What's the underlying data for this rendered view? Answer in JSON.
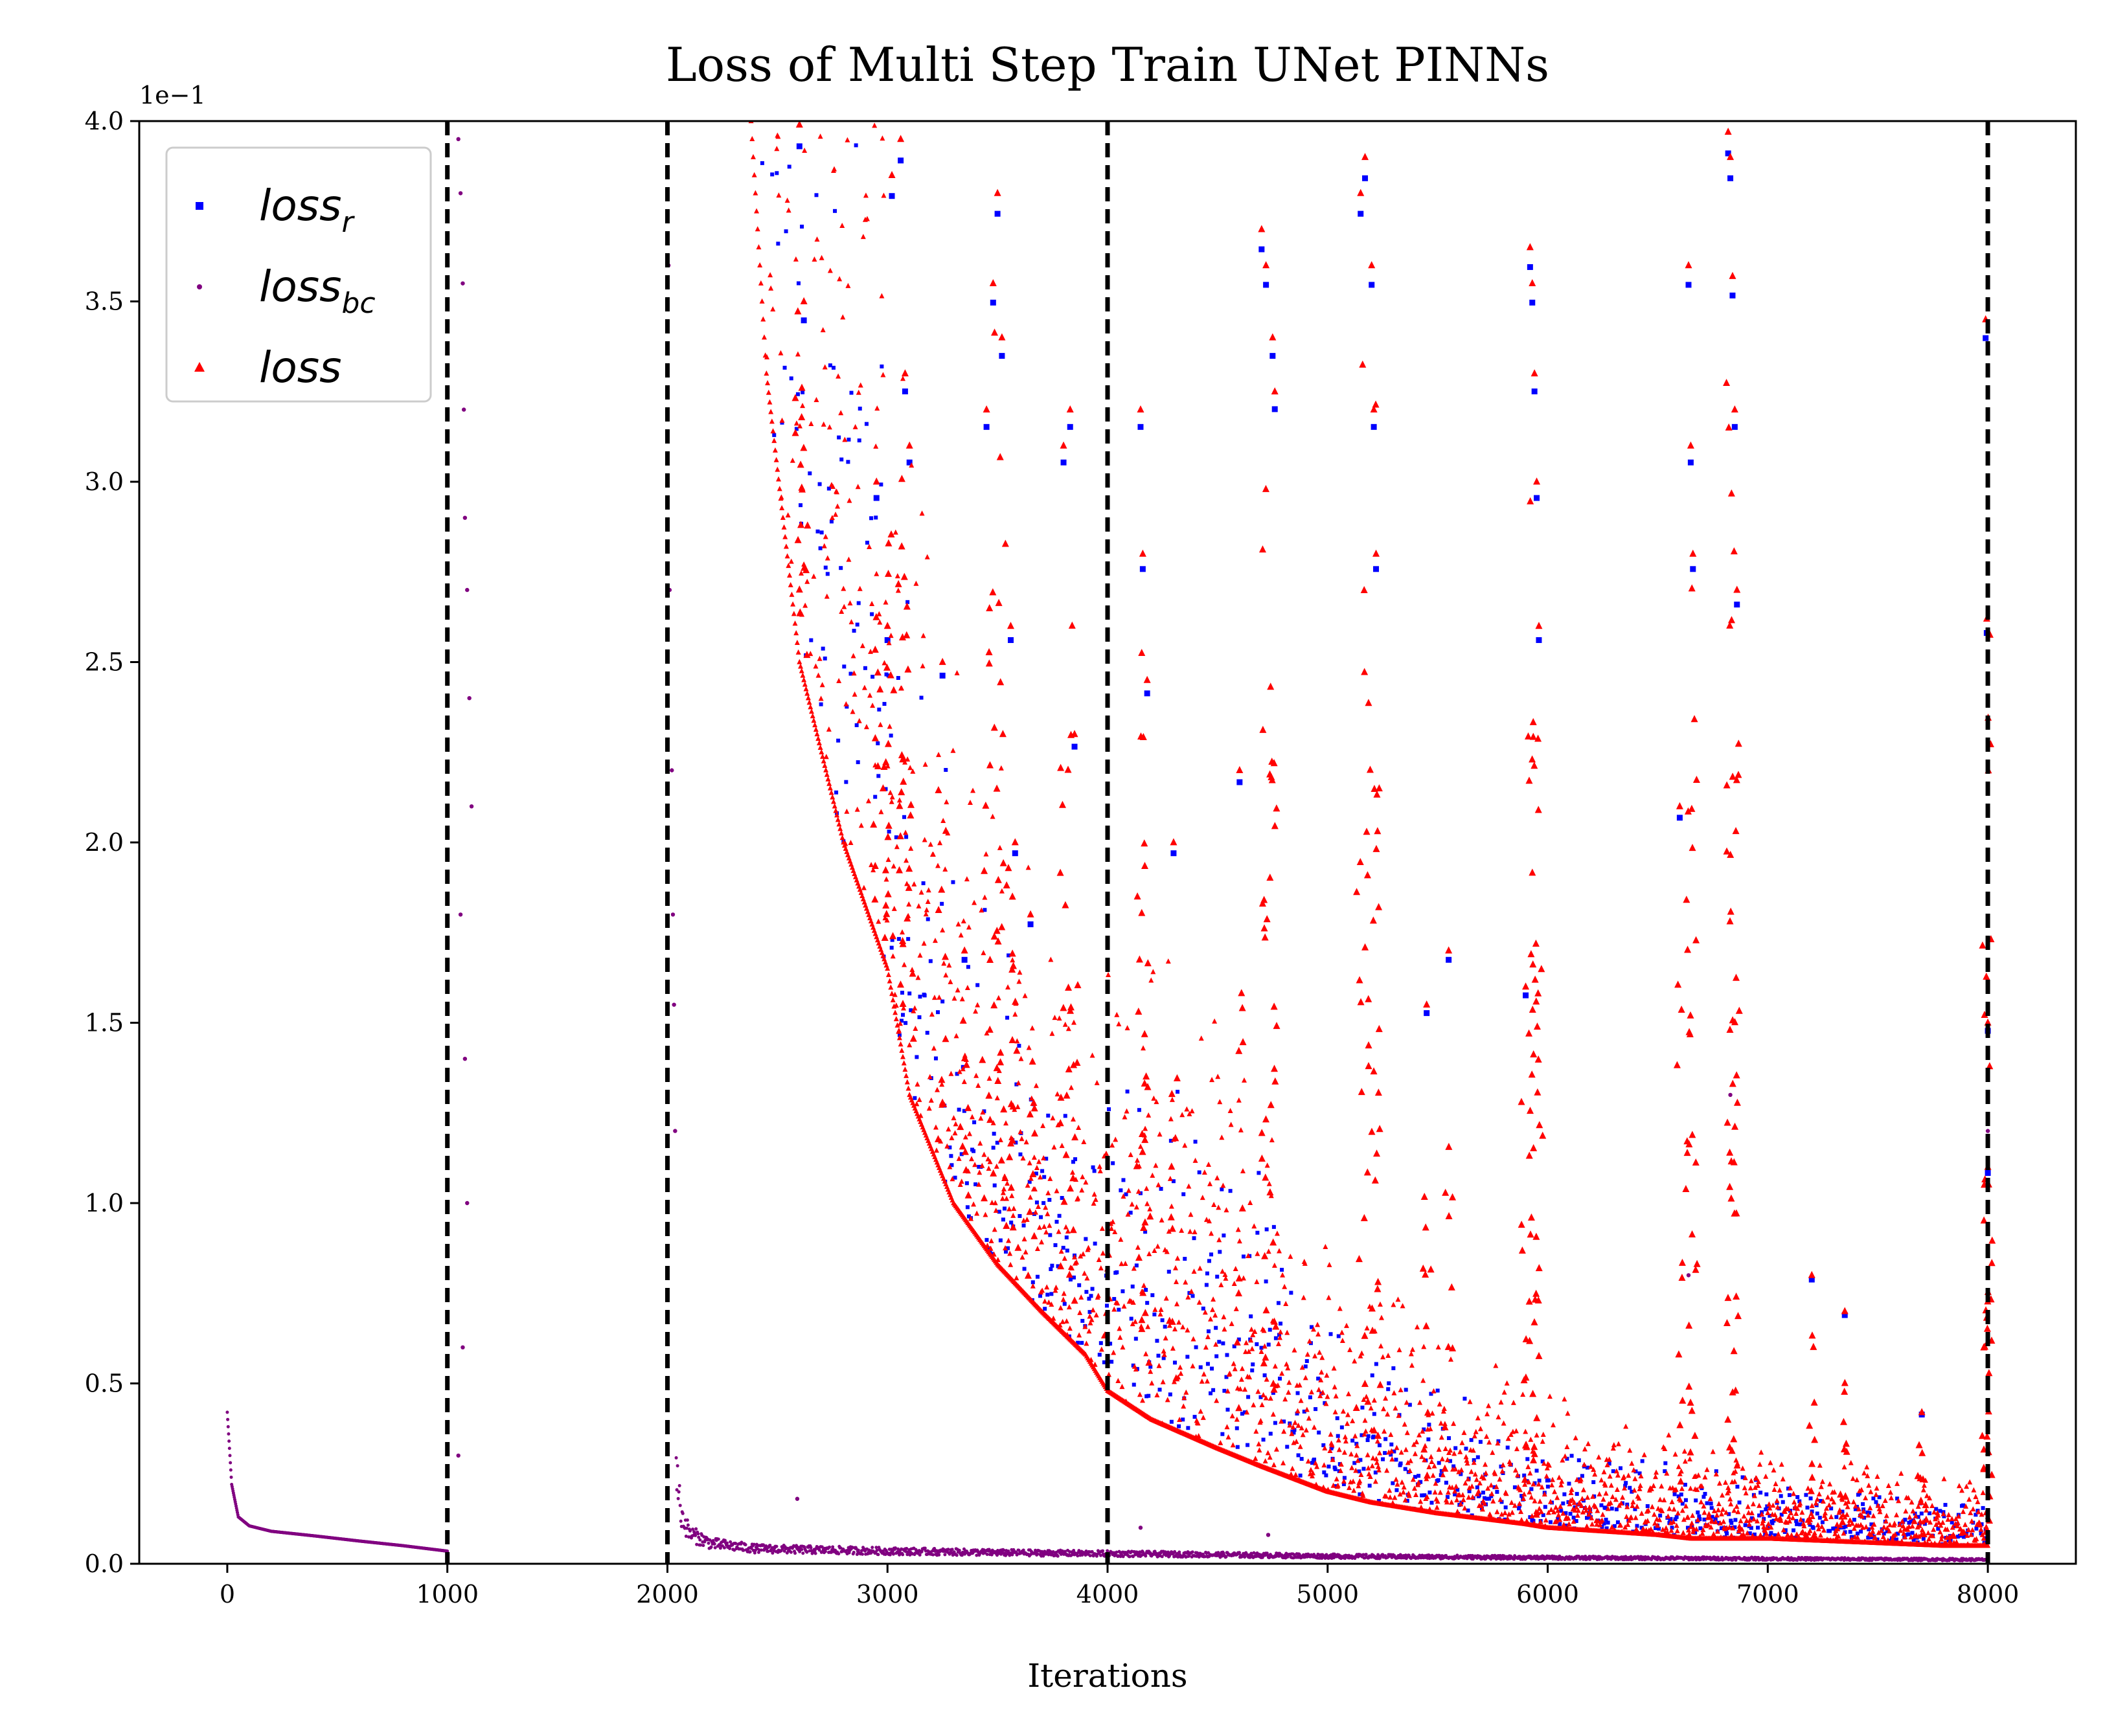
{
  "chart_data": {
    "type": "scatter",
    "title": "Loss of Multi Step Train UNet PINNs",
    "xlabel": "Iterations",
    "ylabel": "",
    "xlim": [
      -400,
      8400
    ],
    "ylim": [
      0,
      0.4
    ],
    "y_offset_label": "1e−1",
    "x_ticks": [
      0,
      1000,
      2000,
      3000,
      4000,
      5000,
      6000,
      7000,
      8000
    ],
    "x_tick_labels": [
      "0",
      "1000",
      "2000",
      "3000",
      "4000",
      "5000",
      "6000",
      "7000",
      "8000"
    ],
    "y_ticks": [
      0,
      0.05,
      0.1,
      0.15,
      0.2,
      0.25,
      0.3,
      0.35,
      0.4
    ],
    "y_tick_labels": [
      "0.0",
      "0.5",
      "1.0",
      "1.5",
      "2.0",
      "2.5",
      "3.0",
      "3.5",
      "4.0"
    ],
    "grid": false,
    "legend_position": "top-left",
    "vertical_lines": [
      1000,
      2000,
      4000,
      8000
    ],
    "colors": {
      "loss_r": "#0000ff",
      "loss_bc": "#800080",
      "loss": "#ff0000",
      "vline": "#000000"
    },
    "series": [
      {
        "name": "loss",
        "sub": "r",
        "key": "loss_r",
        "marker": "square",
        "x": [
          2380,
          2450,
          2600,
          2800,
          3000,
          3100,
          3300,
          3500,
          3700,
          3900,
          4000,
          4200,
          4500,
          4700,
          5000,
          5200,
          5500,
          5900,
          6000,
          6500,
          6650,
          6850,
          7000,
          7400,
          7800,
          8000
        ],
        "y": [
          0.4,
          0.33,
          0.25,
          0.2,
          0.165,
          0.13,
          0.1,
          0.083,
          0.07,
          0.058,
          0.048,
          0.04,
          0.032,
          0.027,
          0.02,
          0.017,
          0.014,
          0.011,
          0.01,
          0.008,
          0.007,
          0.007,
          0.007,
          0.006,
          0.005,
          0.005
        ]
      },
      {
        "name": "loss",
        "sub": "bc",
        "key": "loss_bc",
        "marker": "point",
        "x": [
          0,
          20,
          50,
          100,
          200,
          400,
          600,
          800,
          1000,
          2040,
          2060,
          2100,
          2200,
          2400,
          2600,
          3000,
          3500,
          4000,
          4500,
          5000,
          6000,
          7000,
          8000
        ],
        "y": [
          0.042,
          0.022,
          0.013,
          0.0105,
          0.009,
          0.0077,
          0.0063,
          0.005,
          0.0035,
          0.02,
          0.01,
          0.006,
          0.004,
          0.003,
          0.0028,
          0.0025,
          0.0022,
          0.002,
          0.0018,
          0.0015,
          0.0012,
          0.001,
          0.0008
        ]
      },
      {
        "name": "loss",
        "sub": "",
        "key": "loss",
        "marker": "triangle",
        "x": [
          2380,
          2450,
          2600,
          2800,
          3000,
          3100,
          3300,
          3500,
          3700,
          3900,
          4000,
          4200,
          4500,
          4700,
          5000,
          5200,
          5500,
          5900,
          6000,
          6500,
          6650,
          6850,
          7000,
          7400,
          7800,
          8000
        ],
        "y": [
          0.4,
          0.33,
          0.25,
          0.2,
          0.165,
          0.13,
          0.1,
          0.083,
          0.07,
          0.058,
          0.048,
          0.04,
          0.032,
          0.027,
          0.02,
          0.017,
          0.014,
          0.011,
          0.01,
          0.008,
          0.007,
          0.007,
          0.007,
          0.006,
          0.005,
          0.005
        ]
      }
    ],
    "spikes": [
      {
        "x": 2600,
        "y": 0.399
      },
      {
        "x": 2620,
        "y": 0.35
      },
      {
        "x": 2950,
        "y": 0.3
      },
      {
        "x": 3000,
        "y": 0.26
      },
      {
        "x": 3020,
        "y": 0.385
      },
      {
        "x": 3060,
        "y": 0.395
      },
      {
        "x": 3080,
        "y": 0.33
      },
      {
        "x": 3100,
        "y": 0.31
      },
      {
        "x": 3250,
        "y": 0.25
      },
      {
        "x": 3350,
        "y": 0.17
      },
      {
        "x": 3450,
        "y": 0.32
      },
      {
        "x": 3480,
        "y": 0.355
      },
      {
        "x": 3500,
        "y": 0.38
      },
      {
        "x": 3520,
        "y": 0.34
      },
      {
        "x": 3560,
        "y": 0.26
      },
      {
        "x": 3580,
        "y": 0.2
      },
      {
        "x": 3650,
        "y": 0.18
      },
      {
        "x": 3800,
        "y": 0.31
      },
      {
        "x": 3830,
        "y": 0.32
      },
      {
        "x": 3850,
        "y": 0.23
      },
      {
        "x": 4150,
        "y": 0.32
      },
      {
        "x": 4160,
        "y": 0.28
      },
      {
        "x": 4180,
        "y": 0.245
      },
      {
        "x": 4300,
        "y": 0.2
      },
      {
        "x": 4600,
        "y": 0.22
      },
      {
        "x": 4700,
        "y": 0.37
      },
      {
        "x": 4720,
        "y": 0.36
      },
      {
        "x": 4750,
        "y": 0.34
      },
      {
        "x": 4760,
        "y": 0.325
      },
      {
        "x": 5150,
        "y": 0.38
      },
      {
        "x": 5170,
        "y": 0.39
      },
      {
        "x": 5200,
        "y": 0.36
      },
      {
        "x": 5210,
        "y": 0.32
      },
      {
        "x": 5220,
        "y": 0.28
      },
      {
        "x": 5450,
        "y": 0.155
      },
      {
        "x": 5550,
        "y": 0.17
      },
      {
        "x": 5900,
        "y": 0.16
      },
      {
        "x": 5920,
        "y": 0.365
      },
      {
        "x": 5930,
        "y": 0.355
      },
      {
        "x": 5940,
        "y": 0.33
      },
      {
        "x": 5950,
        "y": 0.3
      },
      {
        "x": 5960,
        "y": 0.26
      },
      {
        "x": 6600,
        "y": 0.21
      },
      {
        "x": 6640,
        "y": 0.36
      },
      {
        "x": 6650,
        "y": 0.31
      },
      {
        "x": 6660,
        "y": 0.28
      },
      {
        "x": 6820,
        "y": 0.397
      },
      {
        "x": 6830,
        "y": 0.39
      },
      {
        "x": 6840,
        "y": 0.357
      },
      {
        "x": 6850,
        "y": 0.32
      },
      {
        "x": 6860,
        "y": 0.27
      },
      {
        "x": 7200,
        "y": 0.08
      },
      {
        "x": 7350,
        "y": 0.07
      },
      {
        "x": 7700,
        "y": 0.042
      },
      {
        "x": 7990,
        "y": 0.345
      },
      {
        "x": 7995,
        "y": 0.262
      },
      {
        "x": 8000,
        "y": 0.15
      },
      {
        "x": 8000,
        "y": 0.11
      }
    ],
    "bc_spikes": [
      {
        "x": 1050,
        "y": 0.395
      },
      {
        "x": 1060,
        "y": 0.38
      },
      {
        "x": 1070,
        "y": 0.355
      },
      {
        "x": 1075,
        "y": 0.32
      },
      {
        "x": 1080,
        "y": 0.29
      },
      {
        "x": 1090,
        "y": 0.27
      },
      {
        "x": 1100,
        "y": 0.24
      },
      {
        "x": 1110,
        "y": 0.21
      },
      {
        "x": 1060,
        "y": 0.18
      },
      {
        "x": 1080,
        "y": 0.14
      },
      {
        "x": 1090,
        "y": 0.1
      },
      {
        "x": 1070,
        "y": 0.06
      },
      {
        "x": 1050,
        "y": 0.03
      },
      {
        "x": 2005,
        "y": 0.36
      },
      {
        "x": 2010,
        "y": 0.27
      },
      {
        "x": 2020,
        "y": 0.22
      },
      {
        "x": 2025,
        "y": 0.18
      },
      {
        "x": 2030,
        "y": 0.155
      },
      {
        "x": 2035,
        "y": 0.12
      },
      {
        "x": 2590,
        "y": 0.018
      },
      {
        "x": 4150,
        "y": 0.01
      },
      {
        "x": 4730,
        "y": 0.008
      },
      {
        "x": 6640,
        "y": 0.08
      },
      {
        "x": 6830,
        "y": 0.13
      },
      {
        "x": 8000,
        "y": 0.15
      },
      {
        "x": 8000,
        "y": 0.12
      }
    ]
  }
}
